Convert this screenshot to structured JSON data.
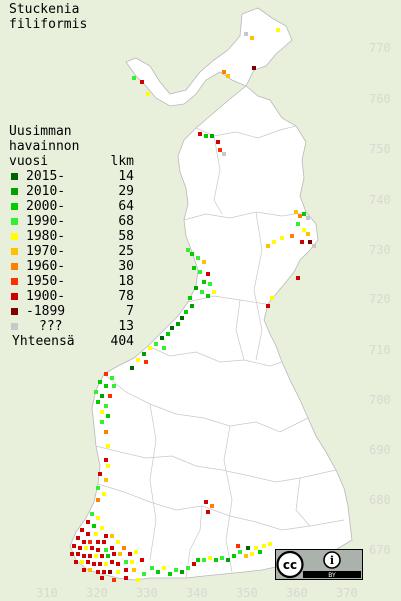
{
  "map": {
    "title_line1": "Stuckenia",
    "title_line2": "filiformis",
    "legend": {
      "heading_line1": "Uusimman",
      "heading_line2": "havainnon",
      "heading_col1": "vuosi",
      "heading_col2": "lkm",
      "entries": [
        {
          "label": "2015-",
          "count": "14",
          "color": "#006400"
        },
        {
          "label": "2010-",
          "count": "29",
          "color": "#00a000"
        },
        {
          "label": "2000-",
          "count": "64",
          "color": "#00cc00"
        },
        {
          "label": "1990-",
          "count": "68",
          "color": "#33ee33"
        },
        {
          "label": "1980-",
          "count": "58",
          "color": "#ffff00"
        },
        {
          "label": "1970-",
          "count": "25",
          "color": "#ffc000"
        },
        {
          "label": "1960-",
          "count": "30",
          "color": "#ff8000"
        },
        {
          "label": "1950-",
          "count": "18",
          "color": "#ff3000"
        },
        {
          "label": "1900-",
          "count": "78",
          "color": "#d00000"
        },
        {
          "label": "-1899",
          "count": "7",
          "color": "#800000"
        },
        {
          "label": "???",
          "count": "13",
          "color": "#c8c8c8"
        }
      ],
      "total_label": "Yhteensä",
      "total_count": "404"
    },
    "y_ticks": [
      "770",
      "760",
      "750",
      "740",
      "730",
      "720",
      "710",
      "700",
      "690",
      "680",
      "670"
    ],
    "x_ticks": [
      "310",
      "320",
      "330",
      "340",
      "350",
      "360",
      "370"
    ],
    "colors": {
      "background": "#e8f0dc",
      "land": "#ffffff",
      "tick_text": "#d8d8d0",
      "region_lines": "#c8c8c8"
    },
    "badge": {
      "cc_glyph": "cc",
      "by_glyph": "i",
      "by_text": "BY"
    }
  }
}
